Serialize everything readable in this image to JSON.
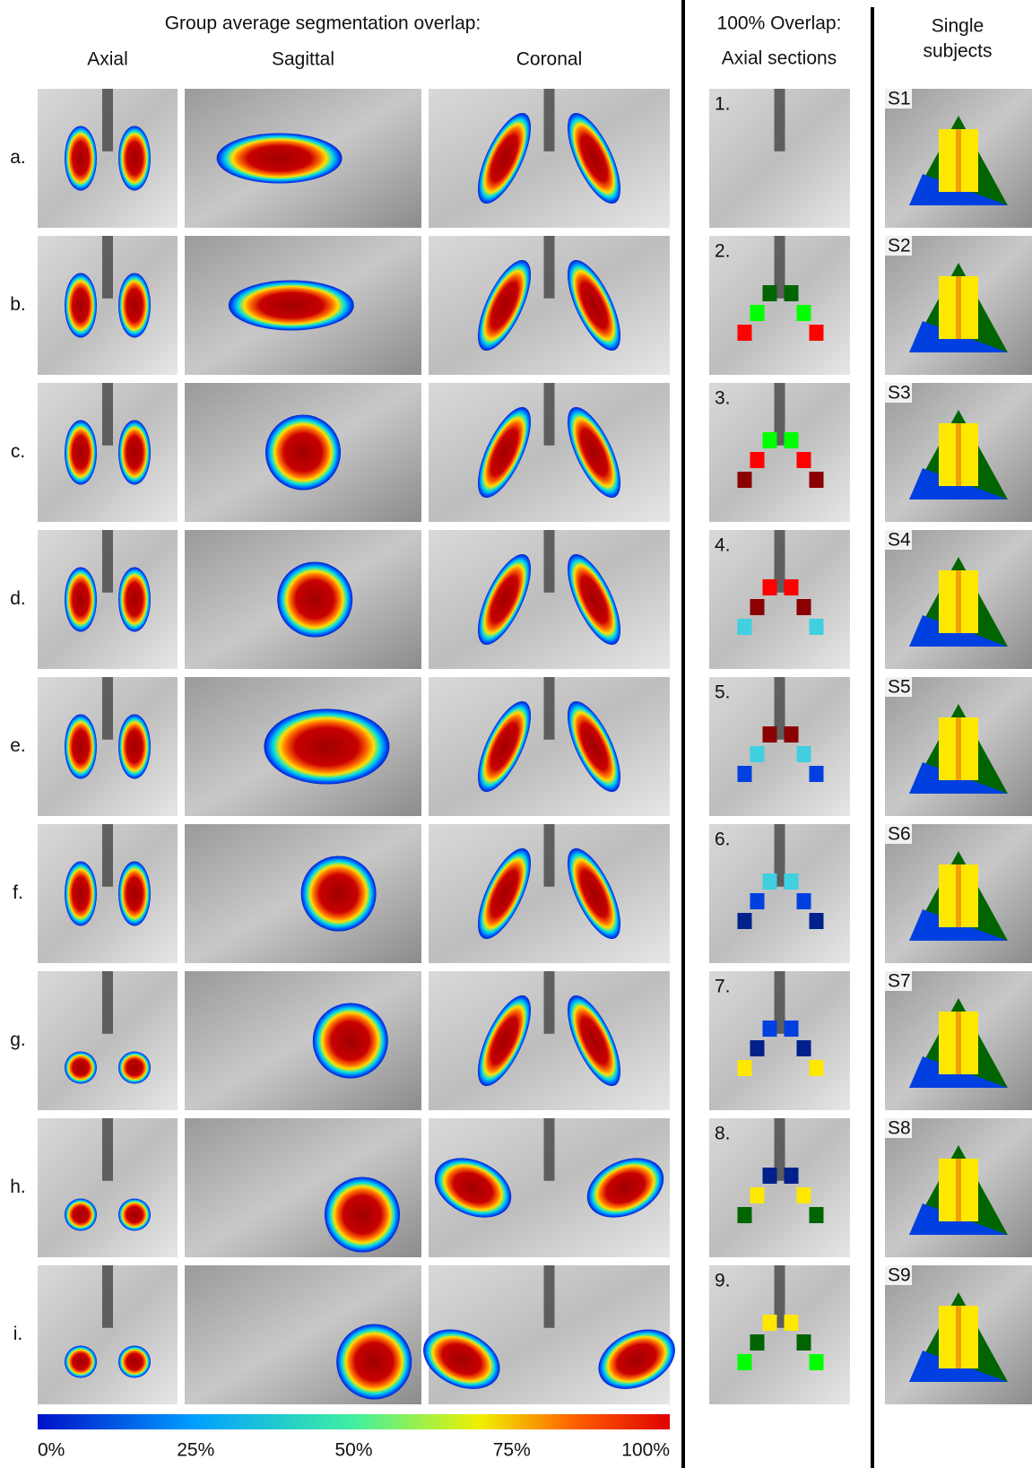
{
  "header": {
    "group_title": "Group average segmentation overlap:",
    "overlap_title": "100% Overlap:",
    "overlap_subtitle": "Axial sections",
    "single_title": "Single",
    "single_subtitle": "subjects"
  },
  "columns": [
    "Axial",
    "Sagittal",
    "Coronal"
  ],
  "rows": [
    "a.",
    "b.",
    "c.",
    "d.",
    "e.",
    "f.",
    "g.",
    "h.",
    "i."
  ],
  "sections": [
    "1.",
    "2.",
    "3.",
    "4.",
    "5.",
    "6.",
    "7.",
    "8.",
    "9."
  ],
  "subjects": [
    "S1",
    "S2",
    "S3",
    "S4",
    "S5",
    "S6",
    "S7",
    "S8",
    "S9"
  ],
  "colorbar": {
    "ticks": [
      "0%",
      "25%",
      "50%",
      "75%",
      "100%"
    ]
  }
}
